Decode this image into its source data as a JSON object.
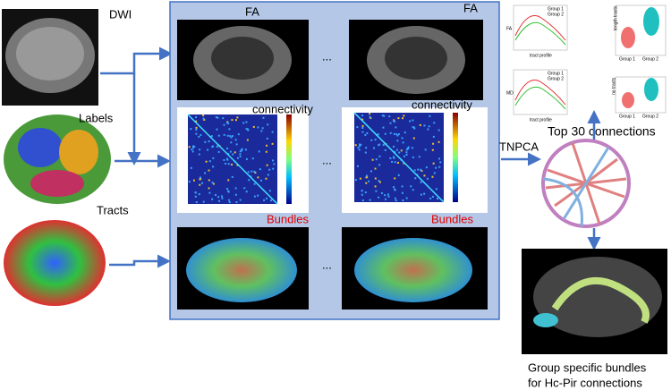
{
  "inputs": {
    "dwi": "DWI",
    "labels": "Labels",
    "tracts": "Tracts"
  },
  "panel": {
    "fa": [
      "FA",
      "FA"
    ],
    "connectivity": [
      "connectivity",
      "connectivity"
    ],
    "bundles": [
      "Bundles",
      "Bundles"
    ],
    "ellipsis": "..."
  },
  "method": "TNPCA",
  "top_connections": "Top 30 connections",
  "plots": {
    "profile_legend": [
      "Group 1",
      "Group 2"
    ],
    "fa_axis": "FA",
    "md_axis": "MD",
    "x_axis": "tract profile",
    "violin_groups": [
      "Group 1",
      "Group 2"
    ],
    "length_axis": "length tracts",
    "count_axis": "no tracts"
  },
  "result": [
    "Group specific bundles",
    "for Hc-Pir connections"
  ]
}
